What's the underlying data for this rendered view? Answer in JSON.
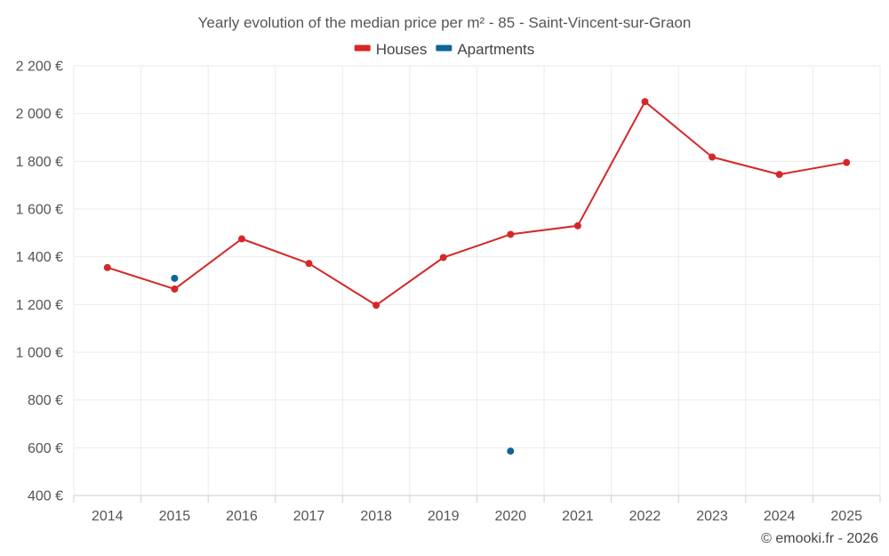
{
  "chart_data": {
    "type": "line",
    "title": "Yearly evolution of the median price per m² - 85 - Saint-Vincent-sur-Graon",
    "categories": [
      "2014",
      "2015",
      "2016",
      "2017",
      "2018",
      "2019",
      "2020",
      "2021",
      "2022",
      "2023",
      "2024",
      "2025"
    ],
    "series": [
      {
        "name": "Houses",
        "color": "#d62728",
        "values": [
          1355,
          1265,
          1475,
          1372,
          1197,
          1397,
          1494,
          1530,
          2050,
          1818,
          1745,
          1795
        ]
      },
      {
        "name": "Apartments",
        "color": "#0d6698",
        "values": [
          null,
          1310,
          null,
          null,
          null,
          null,
          586,
          null,
          null,
          null,
          null,
          null
        ]
      }
    ],
    "ylim": [
      400,
      2200
    ],
    "yticks": [
      400,
      600,
      800,
      1000,
      1200,
      1400,
      1600,
      1800,
      2000,
      2200
    ],
    "ytick_labels": [
      "400 €",
      "600 €",
      "800 €",
      "1 000 €",
      "1 200 €",
      "1 400 €",
      "1 600 €",
      "1 800 €",
      "2 000 €",
      "2 200 €"
    ],
    "xlabel": "",
    "ylabel": "",
    "grid": true,
    "legend_position": "top-center"
  },
  "credit": "© emooki.fr - 2026"
}
